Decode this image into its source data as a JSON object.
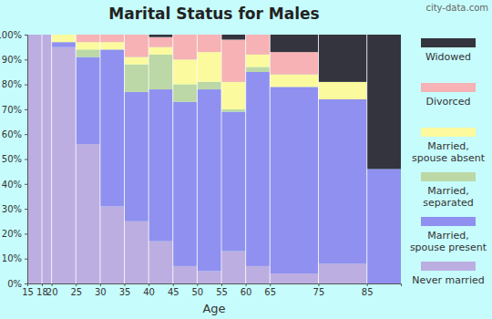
{
  "chart_data": {
    "type": "bar",
    "stacked": true,
    "title": "Marital Status for Males",
    "x_label": "Age",
    "annotations": [
      "city-data.com"
    ],
    "bins": [
      15,
      18,
      20,
      25,
      30,
      35,
      40,
      45,
      50,
      55,
      60,
      65,
      75,
      85,
      92
    ],
    "xlim": [
      15,
      92
    ],
    "xticks": [
      15,
      18,
      20,
      25,
      30,
      35,
      40,
      45,
      50,
      55,
      60,
      65,
      75,
      85
    ],
    "ylim": [
      0,
      100
    ],
    "yticks": [
      {
        "value": 0,
        "label": "0%"
      },
      {
        "value": 10,
        "label": "10%"
      },
      {
        "value": 20,
        "label": "20%"
      },
      {
        "value": 30,
        "label": "30%"
      },
      {
        "value": 40,
        "label": "40%"
      },
      {
        "value": 50,
        "label": "50%"
      },
      {
        "value": 60,
        "label": "60%"
      },
      {
        "value": 70,
        "label": "70%"
      },
      {
        "value": 80,
        "label": "80%"
      },
      {
        "value": 90,
        "label": "90%"
      },
      {
        "value": 100,
        "label": "100%"
      }
    ],
    "legend": "right",
    "series": [
      {
        "name": "Never married",
        "color": "#bcaee0",
        "values": [
          100,
          100,
          95,
          56,
          31,
          25,
          17,
          7,
          5,
          13,
          7,
          4,
          8,
          0
        ]
      },
      {
        "name": "Married, spouse present",
        "color": "#9090f0",
        "values": [
          0,
          0,
          2,
          35,
          63,
          52,
          61,
          66,
          73,
          56,
          78,
          75,
          66,
          46
        ]
      },
      {
        "name": "Married, separated",
        "color": "#bcd8a6",
        "values": [
          0,
          0,
          0,
          3,
          0,
          11,
          14,
          7,
          3,
          1,
          2,
          0,
          0,
          0
        ]
      },
      {
        "name": "Married, spouse absent",
        "color": "#fcfa9e",
        "values": [
          0,
          0,
          3,
          3,
          3,
          3,
          3,
          10,
          12,
          11,
          5,
          5,
          7,
          0
        ]
      },
      {
        "name": "Divorced",
        "color": "#f6b2b4",
        "values": [
          0,
          0,
          0,
          3,
          3,
          9,
          4,
          10,
          7,
          17,
          8,
          9,
          0,
          0
        ]
      },
      {
        "name": "Widowed",
        "color": "#34343e",
        "values": [
          0,
          0,
          0,
          0,
          0,
          0,
          1,
          0,
          0,
          2,
          0,
          7,
          19,
          54
        ]
      }
    ]
  }
}
